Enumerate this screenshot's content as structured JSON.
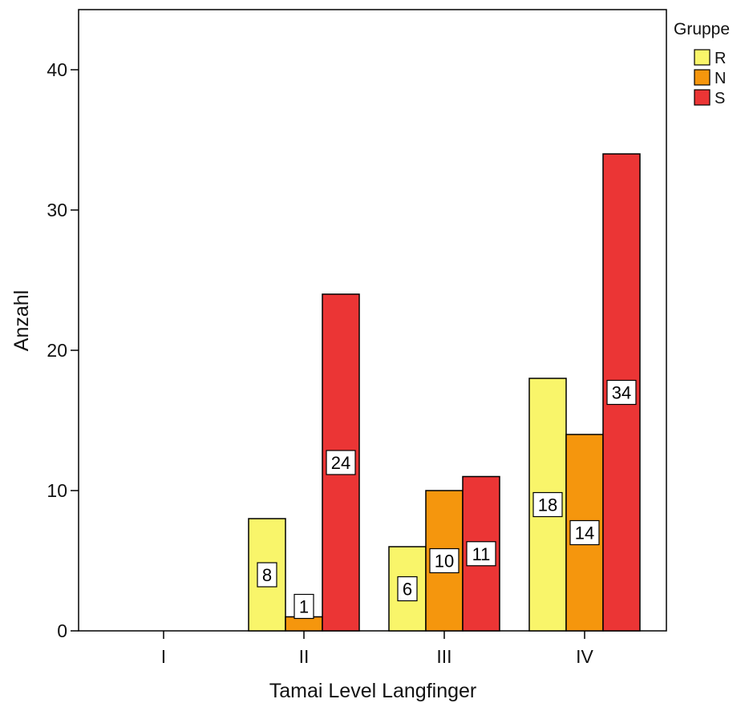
{
  "chart_data": {
    "type": "bar",
    "xlabel": "Tamai Level Langfinger",
    "ylabel": "Anzahl",
    "categories": [
      "I",
      "II",
      "III",
      "IV"
    ],
    "ylim": [
      0,
      44
    ],
    "yticks": [
      0,
      10,
      20,
      30,
      40
    ],
    "grid": false,
    "legend": {
      "title": "Gruppe",
      "position": "top-right"
    },
    "series": [
      {
        "name": "R",
        "color": "#f9f56a",
        "values": [
          0,
          8,
          6,
          18
        ]
      },
      {
        "name": "N",
        "color": "#f5960d",
        "values": [
          0,
          1,
          10,
          14
        ]
      },
      {
        "name": "S",
        "color": "#eb3535",
        "values": [
          0,
          24,
          11,
          34
        ]
      }
    ]
  }
}
